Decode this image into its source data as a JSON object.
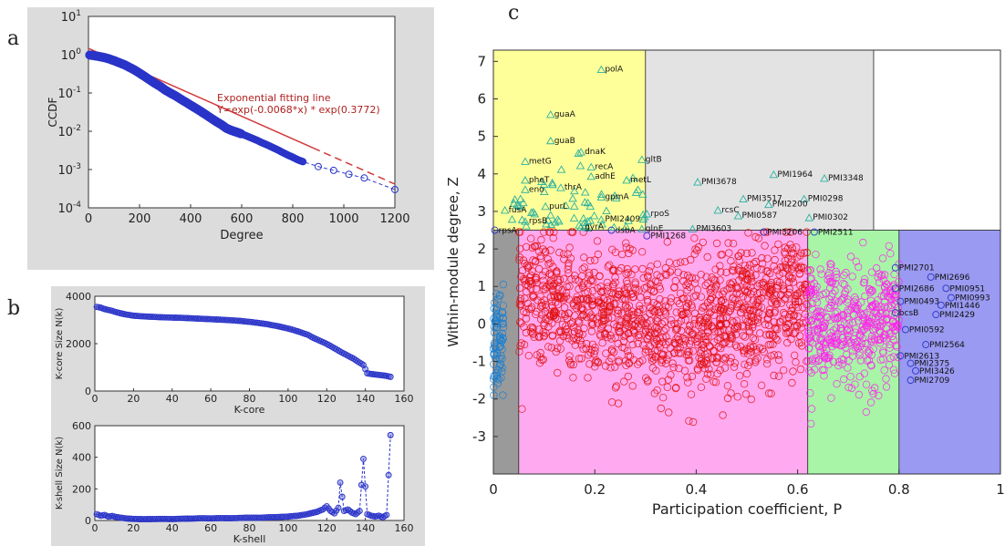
{
  "panel_labels": {
    "a": "a",
    "b": "b",
    "c": "c"
  },
  "chart_data": [
    {
      "type": "scatter",
      "panel": "a",
      "xlabel": "Degree",
      "ylabel": "CCDF",
      "xlim": [
        0,
        1200
      ],
      "ylim_log10": [
        -4,
        1
      ],
      "yscale": "log",
      "xticks": [
        "0",
        "200",
        "400",
        "600",
        "800",
        "1000",
        "1200"
      ],
      "yticks": [
        {
          "base": "10",
          "exp": "1"
        },
        {
          "base": "10",
          "exp": "0"
        },
        {
          "base": "10",
          "exp": "-1"
        },
        {
          "base": "10",
          "exp": "-2"
        },
        {
          "base": "10",
          "exp": "-3"
        },
        {
          "base": "10",
          "exp": "-4"
        }
      ],
      "annotation": {
        "title": "Exponential fitting line",
        "formula": "Y=exp(-0.0068*x) * exp(0.3772)"
      },
      "series_points": [
        [
          5,
          0.98
        ],
        [
          20,
          0.95
        ],
        [
          40,
          0.9
        ],
        [
          60,
          0.85
        ],
        [
          80,
          0.78
        ],
        [
          100,
          0.7
        ],
        [
          120,
          0.62
        ],
        [
          140,
          0.55
        ],
        [
          160,
          0.47
        ],
        [
          180,
          0.4
        ],
        [
          200,
          0.33
        ],
        [
          220,
          0.27
        ],
        [
          240,
          0.22
        ],
        [
          260,
          0.18
        ],
        [
          280,
          0.15
        ],
        [
          300,
          0.12
        ],
        [
          320,
          0.1
        ],
        [
          340,
          0.085
        ],
        [
          360,
          0.07
        ],
        [
          380,
          0.058
        ],
        [
          400,
          0.048
        ],
        [
          420,
          0.04
        ],
        [
          440,
          0.033
        ],
        [
          460,
          0.027
        ],
        [
          480,
          0.022
        ],
        [
          500,
          0.018
        ],
        [
          520,
          0.015
        ],
        [
          540,
          0.012
        ],
        [
          560,
          0.0105
        ],
        [
          580,
          0.0095
        ],
        [
          600,
          0.0085
        ],
        [
          620,
          0.0075
        ],
        [
          640,
          0.0066
        ],
        [
          660,
          0.0058
        ],
        [
          680,
          0.005
        ],
        [
          700,
          0.0044
        ],
        [
          720,
          0.0038
        ],
        [
          740,
          0.0033
        ],
        [
          760,
          0.0028
        ],
        [
          780,
          0.0024
        ],
        [
          800,
          0.0021
        ],
        [
          820,
          0.0018
        ],
        [
          840,
          0.0016
        ],
        [
          900,
          0.0012
        ],
        [
          960,
          0.00095
        ],
        [
          1020,
          0.00075
        ],
        [
          1080,
          0.0006
        ],
        [
          1200,
          0.0003
        ]
      ],
      "colors": {
        "points": "#2a34c8",
        "fit": "#d23a3a"
      }
    },
    {
      "type": "line",
      "panel": "b-top",
      "xlabel": "K-core",
      "ylabel": "K-core Size N(k)",
      "xlim": [
        0,
        160
      ],
      "ylim": [
        0,
        4000
      ],
      "xticks": [
        "0",
        "20",
        "40",
        "60",
        "80",
        "100",
        "120",
        "140",
        "160"
      ],
      "yticks": [
        "0",
        "2000",
        "4000"
      ],
      "points": [
        [
          1,
          3550
        ],
        [
          3,
          3520
        ],
        [
          5,
          3460
        ],
        [
          7,
          3420
        ],
        [
          9,
          3380
        ],
        [
          11,
          3330
        ],
        [
          13,
          3290
        ],
        [
          15,
          3250
        ],
        [
          17,
          3220
        ],
        [
          20,
          3180
        ],
        [
          25,
          3150
        ],
        [
          30,
          3130
        ],
        [
          35,
          3110
        ],
        [
          40,
          3100
        ],
        [
          45,
          3090
        ],
        [
          50,
          3070
        ],
        [
          55,
          3050
        ],
        [
          60,
          3030
        ],
        [
          65,
          3010
        ],
        [
          70,
          2990
        ],
        [
          75,
          2960
        ],
        [
          80,
          2920
        ],
        [
          85,
          2870
        ],
        [
          90,
          2810
        ],
        [
          95,
          2730
        ],
        [
          100,
          2640
        ],
        [
          105,
          2520
        ],
        [
          110,
          2380
        ],
        [
          113,
          2250
        ],
        [
          116,
          2140
        ],
        [
          119,
          2030
        ],
        [
          122,
          1900
        ],
        [
          125,
          1760
        ],
        [
          128,
          1620
        ],
        [
          131,
          1490
        ],
        [
          134,
          1360
        ],
        [
          137,
          1200
        ],
        [
          139,
          1100
        ],
        [
          141,
          750
        ],
        [
          143,
          720
        ],
        [
          145,
          700
        ],
        [
          147,
          680
        ],
        [
          149,
          660
        ],
        [
          151,
          640
        ],
        [
          153,
          600
        ]
      ],
      "colors": {
        "points": "#2a34c8"
      }
    },
    {
      "type": "line",
      "panel": "b-bottom",
      "xlabel": "K-shell",
      "ylabel": "K-shell Size N(k)",
      "xlim": [
        0,
        160
      ],
      "ylim": [
        0,
        600
      ],
      "xticks": [
        "0",
        "20",
        "40",
        "60",
        "80",
        "100",
        "120",
        "140",
        "160"
      ],
      "yticks": [
        "0",
        "200",
        "400",
        "600"
      ],
      "points": [
        [
          1,
          40
        ],
        [
          3,
          30
        ],
        [
          5,
          35
        ],
        [
          7,
          25
        ],
        [
          9,
          28
        ],
        [
          11,
          22
        ],
        [
          13,
          18
        ],
        [
          15,
          15
        ],
        [
          17,
          12
        ],
        [
          20,
          10
        ],
        [
          25,
          8
        ],
        [
          30,
          9
        ],
        [
          35,
          10
        ],
        [
          40,
          9
        ],
        [
          45,
          11
        ],
        [
          50,
          12
        ],
        [
          55,
          14
        ],
        [
          60,
          13
        ],
        [
          65,
          15
        ],
        [
          70,
          14
        ],
        [
          75,
          16
        ],
        [
          80,
          18
        ],
        [
          85,
          17
        ],
        [
          90,
          20
        ],
        [
          95,
          22
        ],
        [
          100,
          25
        ],
        [
          105,
          30
        ],
        [
          110,
          40
        ],
        [
          115,
          55
        ],
        [
          118,
          70
        ],
        [
          120,
          90
        ],
        [
          122,
          60
        ],
        [
          124,
          45
        ],
        [
          126,
          80
        ],
        [
          127,
          240
        ],
        [
          129,
          60
        ],
        [
          131,
          70
        ],
        [
          133,
          50
        ],
        [
          135,
          40
        ],
        [
          137,
          60
        ],
        [
          139,
          390
        ],
        [
          141,
          40
        ],
        [
          143,
          30
        ],
        [
          145,
          25
        ],
        [
          147,
          30
        ],
        [
          149,
          20
        ],
        [
          151,
          35
        ],
        [
          153,
          540
        ]
      ],
      "colors": {
        "points": "#2a34c8"
      }
    },
    {
      "type": "scatter",
      "panel": "c",
      "xlabel": "Participation coefficient, P",
      "ylabel": "Within-module degree, Z",
      "xlim": [
        0,
        1
      ],
      "ylim": [
        -4,
        7.3
      ],
      "xticks": [
        "0",
        "0.2",
        "0.4",
        "0.6",
        "0.8",
        "1"
      ],
      "yticks": [
        "7",
        "6",
        "5",
        "4",
        "3",
        "2",
        "1",
        "0",
        "-1",
        "-2",
        "-3"
      ],
      "regions": [
        {
          "x0": 0,
          "x1": 0.3,
          "y0": 2.5,
          "y1": 7.3,
          "color": "#ffff9a"
        },
        {
          "x0": 0.3,
          "x1": 0.75,
          "y0": 2.5,
          "y1": 7.3,
          "color": "#e3e3e3"
        },
        {
          "x0": 0.75,
          "x1": 1.0,
          "y0": 2.5,
          "y1": 7.3,
          "color": "#ffffff"
        },
        {
          "x0": 0,
          "x1": 0.05,
          "y0": -4,
          "y1": 2.5,
          "color": "#9a9a9a"
        },
        {
          "x0": 0.05,
          "x1": 0.62,
          "y0": -4,
          "y1": 2.5,
          "color": "#ffaaf0"
        },
        {
          "x0": 0.62,
          "x1": 0.8,
          "y0": -4,
          "y1": 2.5,
          "color": "#a8f5a8"
        },
        {
          "x0": 0.8,
          "x1": 1.0,
          "y0": -4,
          "y1": 2.5,
          "color": "#9a9af2"
        }
      ],
      "hub_labels": [
        {
          "label": "polA",
          "x": 0.22,
          "y": 6.8
        },
        {
          "label": "guaA",
          "x": 0.12,
          "y": 5.6
        },
        {
          "label": "guaB",
          "x": 0.12,
          "y": 4.9
        },
        {
          "label": "dnaK",
          "x": 0.18,
          "y": 4.6
        },
        {
          "label": "metG",
          "x": 0.07,
          "y": 4.35
        },
        {
          "label": "recA",
          "x": 0.2,
          "y": 4.2
        },
        {
          "label": "adhE",
          "x": 0.2,
          "y": 3.95
        },
        {
          "label": "pheT",
          "x": 0.07,
          "y": 3.85
        },
        {
          "label": "thrA",
          "x": 0.14,
          "y": 3.65
        },
        {
          "label": "eno",
          "x": 0.07,
          "y": 3.6
        },
        {
          "label": "metL",
          "x": 0.27,
          "y": 3.85
        },
        {
          "label": "gpmA",
          "x": 0.22,
          "y": 3.4
        },
        {
          "label": "fusA",
          "x": 0.03,
          "y": 3.05
        },
        {
          "label": "purL",
          "x": 0.11,
          "y": 3.15
        },
        {
          "label": "PMI2409",
          "x": 0.22,
          "y": 2.8
        },
        {
          "label": "rpoS",
          "x": 0.31,
          "y": 2.95
        },
        {
          "label": "rpsB",
          "x": 0.07,
          "y": 2.75
        },
        {
          "label": "rpsA",
          "x": 0.01,
          "y": 2.5
        },
        {
          "label": "dsbA",
          "x": 0.24,
          "y": 2.5
        },
        {
          "label": "gyrA",
          "x": 0.18,
          "y": 2.6
        },
        {
          "label": "glnE",
          "x": 0.3,
          "y": 2.55
        },
        {
          "label": "gltB",
          "x": 0.3,
          "y": 4.4
        },
        {
          "label": "PMI1268",
          "x": 0.31,
          "y": 2.35
        },
        {
          "label": "PMI3678",
          "x": 0.41,
          "y": 3.8
        },
        {
          "label": "PMI1964",
          "x": 0.56,
          "y": 4.0
        },
        {
          "label": "PMI3348",
          "x": 0.66,
          "y": 3.9
        },
        {
          "label": "PMI3517",
          "x": 0.5,
          "y": 3.35
        },
        {
          "label": "PMI0298",
          "x": 0.62,
          "y": 3.35
        },
        {
          "label": "PMI2200",
          "x": 0.55,
          "y": 3.2
        },
        {
          "label": "rcsC",
          "x": 0.45,
          "y": 3.05
        },
        {
          "label": "PMI0587",
          "x": 0.49,
          "y": 2.9
        },
        {
          "label": "PMI0302",
          "x": 0.63,
          "y": 2.85
        },
        {
          "label": "PMI3603",
          "x": 0.4,
          "y": 2.55
        },
        {
          "label": "PMI3206",
          "x": 0.54,
          "y": 2.45
        },
        {
          "label": "PMI2511",
          "x": 0.64,
          "y": 2.45
        },
        {
          "label": "PMI2701",
          "x": 0.8,
          "y": 1.5
        },
        {
          "label": "PMI2696",
          "x": 0.87,
          "y": 1.25
        },
        {
          "label": "PMI0951",
          "x": 0.9,
          "y": 0.95
        },
        {
          "label": "PMI2686",
          "x": 0.8,
          "y": 0.95
        },
        {
          "label": "PMI0993",
          "x": 0.91,
          "y": 0.7
        },
        {
          "label": "PMI0493",
          "x": 0.81,
          "y": 0.6
        },
        {
          "label": "PMI1446",
          "x": 0.89,
          "y": 0.5
        },
        {
          "label": "bcsB",
          "x": 0.8,
          "y": 0.3
        },
        {
          "label": "PMI2429",
          "x": 0.88,
          "y": 0.25
        },
        {
          "label": "PMI0592",
          "x": 0.82,
          "y": -0.15
        },
        {
          "label": "PMI2564",
          "x": 0.86,
          "y": -0.55
        },
        {
          "label": "PMI2613",
          "x": 0.81,
          "y": -0.85
        },
        {
          "label": "PMI2375",
          "x": 0.83,
          "y": -1.05
        },
        {
          "label": "PMI3426",
          "x": 0.84,
          "y": -1.25
        },
        {
          "label": "PMI2709",
          "x": 0.83,
          "y": -1.5
        }
      ],
      "scatter_groups": [
        {
          "name": "",
          "color": "#e01010",
          "x_range": [
            0.05,
            0.62
          ],
          "mean_y": 0.0,
          "sd_y": 0.9,
          "count": 1300
        },
        {
          "name": "",
          "color": "#ff20ee",
          "x_range": [
            0.62,
            0.8
          ],
          "mean_y": 0.0,
          "sd_y": 0.8,
          "count": 450
        },
        {
          "name": "",
          "color": "#1a7fd0",
          "x_range": [
            0.0,
            0.02
          ],
          "mean_y": -0.5,
          "sd_y": 0.8,
          "count": 80
        },
        {
          "name": "",
          "color": "#2bb0a0",
          "x_range": [
            0.03,
            0.3
          ],
          "mean_y": 3.2,
          "sd_y": 0.7,
          "count": 60,
          "marker": "triangle"
        }
      ]
    }
  ]
}
